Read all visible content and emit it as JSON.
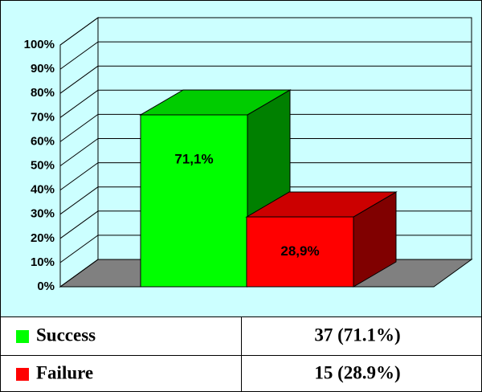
{
  "chart_data": {
    "type": "bar3d",
    "series": [
      {
        "name": "Success",
        "color": "#00ff00",
        "values": [
          71.1
        ],
        "value_labels": [
          "71,1%"
        ]
      },
      {
        "name": "Failure",
        "color": "#ff0000",
        "values": [
          28.9
        ],
        "value_labels": [
          "28,9%"
        ]
      }
    ],
    "ylim": [
      0,
      100
    ],
    "yticks": [
      {
        "value": 0,
        "label": "0%"
      },
      {
        "value": 10,
        "label": "10%"
      },
      {
        "value": 20,
        "label": "20%"
      },
      {
        "value": 30,
        "label": "30%"
      },
      {
        "value": 40,
        "label": "40%"
      },
      {
        "value": 50,
        "label": "50%"
      },
      {
        "value": 60,
        "label": "60%"
      },
      {
        "value": 70,
        "label": "70%"
      },
      {
        "value": 80,
        "label": "80%"
      },
      {
        "value": 90,
        "label": "90%"
      },
      {
        "value": 100,
        "label": "100%"
      }
    ],
    "grid": true
  },
  "table": {
    "values": [
      "37 (71.1%)",
      "15 (28.9%)"
    ]
  }
}
